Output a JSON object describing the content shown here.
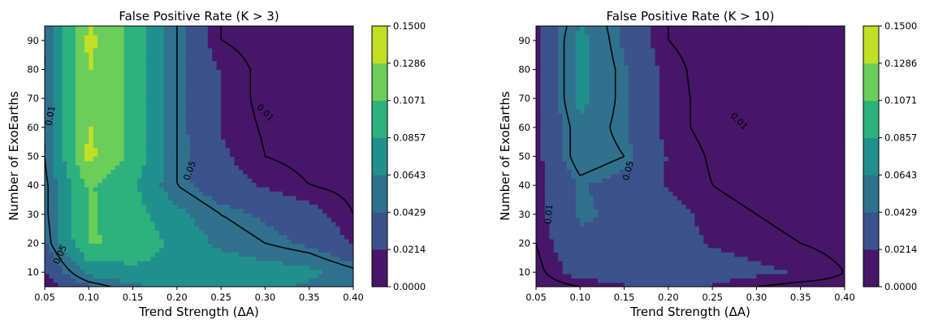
{
  "chart_data": [
    {
      "type": "heatmap",
      "subtype": "filled-contour",
      "title": "False Positive Rate (K > 3)",
      "xlabel": "Trend Strength (ΔA)",
      "ylabel": "Number of ExoEarths",
      "x": [
        0.05,
        0.1,
        0.15,
        0.2,
        0.25,
        0.3,
        0.35,
        0.4
      ],
      "y": [
        5,
        10,
        20,
        30,
        40,
        50,
        60,
        70,
        80,
        90,
        95
      ],
      "xlim": [
        0.05,
        0.4
      ],
      "ylim": [
        5,
        95
      ],
      "x_ticks": [
        0.05,
        0.1,
        0.15,
        0.2,
        0.25,
        0.3,
        0.35,
        0.4
      ],
      "y_ticks": [
        10,
        20,
        30,
        40,
        50,
        60,
        70,
        80,
        90
      ],
      "z": [
        [
          0.01,
          0.04,
          0.06,
          0.07,
          0.07,
          0.07,
          0.06,
          0.05
        ],
        [
          0.02,
          0.07,
          0.08,
          0.08,
          0.08,
          0.075,
          0.07,
          0.055
        ],
        [
          0.04,
          0.11,
          0.1,
          0.08,
          0.06,
          0.05,
          0.04,
          0.02
        ],
        [
          0.045,
          0.11,
          0.095,
          0.07,
          0.05,
          0.04,
          0.03,
          0.01
        ],
        [
          0.045,
          0.11,
          0.09,
          0.05,
          0.03,
          0.02,
          0.01,
          0.005
        ],
        [
          0.05,
          0.135,
          0.1,
          0.05,
          0.025,
          0.01,
          0.005,
          0.002
        ],
        [
          0.05,
          0.13,
          0.1,
          0.05,
          0.02,
          0.008,
          0.003,
          0.002
        ],
        [
          0.05,
          0.13,
          0.1,
          0.05,
          0.02,
          0.005,
          0.002,
          0.001
        ],
        [
          0.05,
          0.13,
          0.1,
          0.05,
          0.02,
          0.005,
          0.002,
          0.001
        ],
        [
          0.05,
          0.135,
          0.1,
          0.05,
          0.01,
          0.003,
          0.001,
          0.001
        ],
        [
          0.05,
          0.13,
          0.1,
          0.05,
          0.01,
          0.002,
          0.001,
          0.001
        ]
      ],
      "levels": [
        0.0,
        0.0214,
        0.0429,
        0.0643,
        0.0857,
        0.1071,
        0.1286,
        0.15
      ],
      "contour_lines": [
        0.01,
        0.05
      ],
      "contour_labels": [
        "0.01",
        "0.05",
        "0.05",
        "0.01"
      ],
      "colorbar": {
        "ticks": [
          "0.0000",
          "0.0214",
          "0.0429",
          "0.0643",
          "0.0857",
          "0.1071",
          "0.1286",
          "0.1500"
        ],
        "colors": [
          "#471669",
          "#3b528b",
          "#30718d",
          "#21908d",
          "#2db27d",
          "#6ccd5a",
          "#c0df25"
        ]
      }
    },
    {
      "type": "heatmap",
      "subtype": "filled-contour",
      "title": "False Positive Rate (K > 10)",
      "xlabel": "Trend Strength (ΔA)",
      "ylabel": "Number of ExoEarths",
      "x": [
        0.05,
        0.1,
        0.15,
        0.2,
        0.25,
        0.3,
        0.35,
        0.4
      ],
      "y": [
        5,
        10,
        20,
        30,
        40,
        50,
        60,
        70,
        80,
        90,
        95
      ],
      "xlim": [
        0.05,
        0.4
      ],
      "ylim": [
        5,
        95
      ],
      "x_ticks": [
        0.05,
        0.1,
        0.15,
        0.2,
        0.25,
        0.3,
        0.35,
        0.4
      ],
      "y_ticks": [
        10,
        20,
        30,
        40,
        50,
        60,
        70,
        80,
        90
      ],
      "z": [
        [
          0.0,
          0.01,
          0.02,
          0.02,
          0.02,
          0.01,
          0.005,
          0.005
        ],
        [
          0.005,
          0.03,
          0.03,
          0.03,
          0.03,
          0.025,
          0.02,
          0.01
        ],
        [
          0.01,
          0.04,
          0.04,
          0.03,
          0.02,
          0.015,
          0.01,
          0.005
        ],
        [
          0.015,
          0.045,
          0.04,
          0.03,
          0.015,
          0.01,
          0.005,
          0.003
        ],
        [
          0.015,
          0.045,
          0.035,
          0.02,
          0.01,
          0.005,
          0.003,
          0.002
        ],
        [
          0.015,
          0.06,
          0.05,
          0.02,
          0.008,
          0.003,
          0.002,
          0.001
        ],
        [
          0.015,
          0.06,
          0.045,
          0.015,
          0.005,
          0.002,
          0.001,
          0.001
        ],
        [
          0.015,
          0.07,
          0.045,
          0.015,
          0.005,
          0.002,
          0.001,
          0.001
        ],
        [
          0.015,
          0.07,
          0.045,
          0.015,
          0.003,
          0.001,
          0.001,
          0.001
        ],
        [
          0.015,
          0.07,
          0.04,
          0.01,
          0.003,
          0.001,
          0.001,
          0.001
        ],
        [
          0.015,
          0.065,
          0.04,
          0.01,
          0.003,
          0.001,
          0.001,
          0.001
        ]
      ],
      "levels": [
        0.0,
        0.0214,
        0.0429,
        0.0643,
        0.0857,
        0.1071,
        0.1286,
        0.15
      ],
      "contour_lines": [
        0.01,
        0.05
      ],
      "contour_labels": [
        "0.01",
        "0.05",
        "0.01"
      ],
      "colorbar": {
        "ticks": [
          "0.0000",
          "0.0214",
          "0.0429",
          "0.0643",
          "0.0857",
          "0.1071",
          "0.1286",
          "0.1500"
        ],
        "colors": [
          "#471669",
          "#3b528b",
          "#30718d",
          "#21908d",
          "#2db27d",
          "#6ccd5a",
          "#c0df25"
        ]
      }
    }
  ]
}
